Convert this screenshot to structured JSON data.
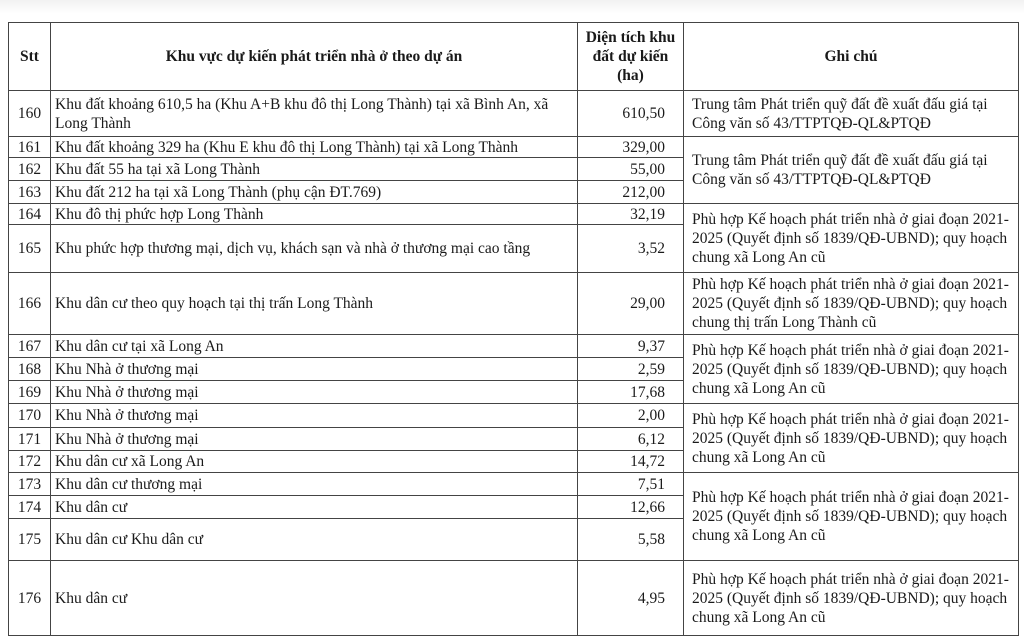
{
  "header": {
    "stt": "Stt",
    "area_name": "Khu vực dự kiến phát triển nhà ở theo dự án",
    "area_size": "Diện tích khu đất dự kiến (ha)",
    "note": "Ghi chú"
  },
  "rows": [
    {
      "stt": "160",
      "name": "Khu đất khoảng 610,5 ha (Khu A+B khu đô thị Long Thành) tại xã Bình An, xã Long Thành",
      "area": "610,50",
      "note": "Trung tâm Phát triển quỹ đất đề xuất đấu giá tại Công văn số 43/TTPTQĐ-QL&PTQĐ",
      "span": 1
    },
    {
      "stt": "161",
      "name": "Khu đất khoảng 329 ha (Khu E khu đô thị Long Thành) tại xã Long Thành",
      "area": "329,00",
      "note": "Trung tâm Phát triển quỹ đất đề xuất đấu giá tại Công văn số 43/TTPTQĐ-QL&PTQĐ",
      "span": 3
    },
    {
      "stt": "162",
      "name": "Khu đất 55 ha tại xã Long Thành",
      "area": "55,00"
    },
    {
      "stt": "163",
      "name": "Khu đất 212 ha tại xã Long Thành (phụ cận ĐT.769)",
      "area": "212,00"
    },
    {
      "stt": "164",
      "name": "Khu đô thị phức hợp Long Thành",
      "area": "32,19",
      "note": "Phù hợp Kế hoạch phát triển nhà ở giai đoạn 2021-2025 (Quyết định số 1839/QĐ-UBND); quy hoạch chung xã Long An cũ",
      "span": 2
    },
    {
      "stt": "165",
      "name": "Khu phức hợp thương mại, dịch vụ, khách sạn và nhà ở thương mại cao tầng",
      "area": "3,52"
    },
    {
      "stt": "166",
      "name": "Khu dân cư theo quy hoạch tại thị trấn Long Thành",
      "area": "29,00",
      "note": "Phù hợp Kế hoạch phát triển nhà ở giai đoạn 2021-2025 (Quyết định số 1839/QĐ-UBND); quy hoạch chung thị trấn Long Thành cũ",
      "span": 1
    },
    {
      "stt": "167",
      "name": "Khu dân cư tại xã Long An",
      "area": "9,37",
      "note": "Phù hợp Kế hoạch phát triển nhà ở giai đoạn 2021-2025 (Quyết định số 1839/QĐ-UBND); quy hoạch chung xã Long An cũ",
      "span": 3
    },
    {
      "stt": "168",
      "name": "Khu Nhà ở thương mại",
      "area": "2,59"
    },
    {
      "stt": "169",
      "name": "Khu Nhà ở thương mại",
      "area": "17,68"
    },
    {
      "stt": "170",
      "name": "Khu Nhà ở thương mại",
      "area": "2,00",
      "note": "Phù hợp Kế hoạch phát triển nhà ở giai đoạn 2021-2025 (Quyết định số 1839/QĐ-UBND); quy hoạch chung xã Long An cũ",
      "span": 3
    },
    {
      "stt": "171",
      "name": "Khu Nhà ở thương mại",
      "area": "6,12"
    },
    {
      "stt": "172",
      "name": "Khu dân cư xã Long An",
      "area": "14,72"
    },
    {
      "stt": "173",
      "name": "Khu dân cư thương mại",
      "area": "7,51",
      "note": "Phù hợp Kế hoạch phát triển nhà ở giai đoạn 2021-2025 (Quyết định số 1839/QĐ-UBND); quy hoạch chung xã Long An cũ",
      "span": 3
    },
    {
      "stt": "174",
      "name": "Khu dân cư",
      "area": "12,66"
    },
    {
      "stt": "175",
      "name": "Khu dân cư Khu dân cư",
      "area": "5,58"
    },
    {
      "stt": "176",
      "name": "Khu dân cư",
      "area": "4,95",
      "note": "Phù hợp Kế hoạch phát triển nhà ở giai đoạn 2021-2025 (Quyết định số 1839/QĐ-UBND); quy hoạch chung xã Long An cũ",
      "span": 1
    }
  ]
}
